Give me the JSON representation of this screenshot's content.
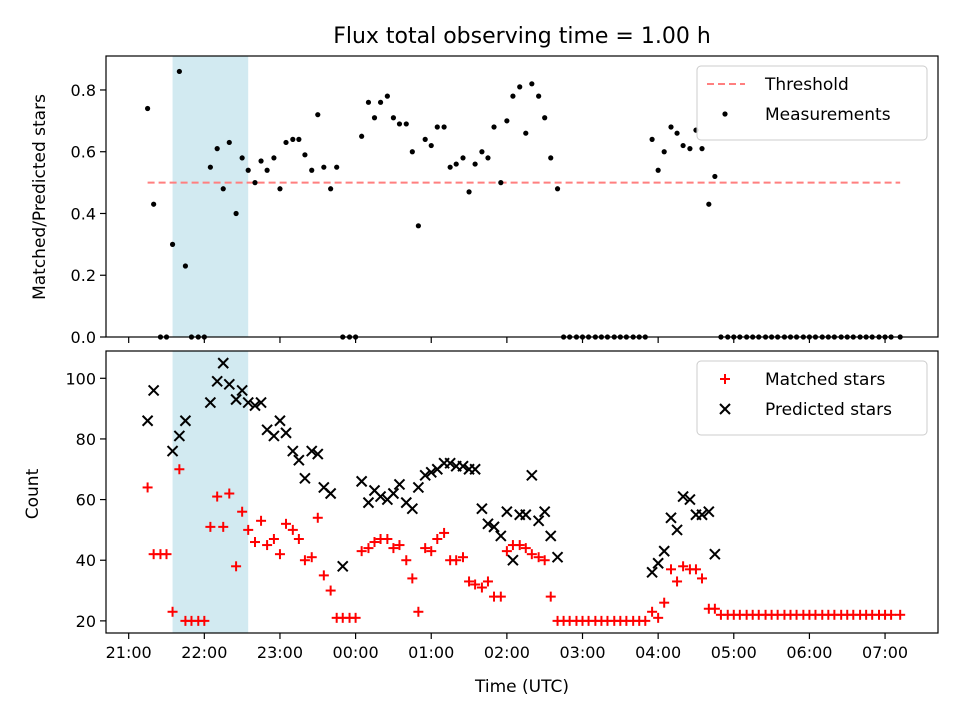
{
  "chart_data": [
    {
      "type": "scatter",
      "title": "Flux total observing time = 1.00 h",
      "xlabel": "",
      "ylabel": "Matched/Predicted stars",
      "ylim": [
        0,
        0.91
      ],
      "yticks": [
        "0.0",
        "0.2",
        "0.4",
        "0.6",
        "0.8"
      ],
      "grid": false,
      "legend_position": "top-right",
      "highlight_span": {
        "x_start": 4.58,
        "x_end": 5.58,
        "color": "#add8e6"
      },
      "threshold": {
        "name": "Threshold",
        "value": 0.5,
        "x_start": 4.25,
        "x_end": 14.2,
        "color": "#ff7f7f",
        "style": "dashed"
      },
      "series": [
        {
          "name": "Measurements",
          "color": "#000000",
          "x": [
            4.25,
            4.33,
            4.42,
            4.5,
            4.58,
            4.67,
            4.75,
            4.83,
            4.92,
            5.0,
            5.08,
            5.17,
            5.25,
            5.33,
            5.42,
            5.5,
            5.58,
            5.67,
            5.75,
            5.83,
            5.92,
            6.0,
            6.08,
            6.17,
            6.25,
            6.33,
            6.42,
            6.5,
            6.58,
            6.67,
            6.75,
            6.83,
            6.92,
            7.0,
            7.08,
            7.17,
            7.25,
            7.33,
            7.42,
            7.5,
            7.58,
            7.67,
            7.75,
            7.83,
            7.92,
            8.0,
            8.08,
            8.17,
            8.25,
            8.33,
            8.42,
            8.5,
            8.58,
            8.67,
            8.75,
            8.83,
            8.92,
            9.0,
            9.08,
            9.17,
            9.25,
            9.33,
            9.42,
            9.5,
            9.58,
            9.67,
            9.75,
            9.83,
            9.92,
            10.0,
            10.08,
            10.17,
            10.25,
            10.33,
            10.42,
            10.5,
            10.58,
            10.67,
            10.75,
            10.83,
            10.92,
            11.0,
            11.08,
            11.17,
            11.25,
            11.33,
            11.42,
            11.5,
            11.58,
            11.67,
            11.75,
            11.83,
            11.92,
            12.0,
            12.08,
            12.17,
            12.25,
            12.33,
            12.42,
            12.5,
            12.58,
            12.67,
            12.75,
            12.83,
            12.92,
            13.0,
            13.08,
            13.17,
            13.25,
            13.33,
            13.42,
            13.5,
            13.58,
            13.67,
            13.75,
            13.83,
            13.92,
            14.0,
            14.08,
            14.2
          ],
          "y": [
            0.74,
            0.43,
            0.0,
            0.0,
            0.3,
            0.86,
            0.23,
            0.0,
            0.0,
            0.0,
            0.55,
            0.61,
            0.48,
            0.63,
            0.4,
            0.58,
            0.54,
            0.5,
            0.57,
            0.54,
            0.58,
            0.48,
            0.63,
            0.64,
            0.64,
            0.59,
            0.54,
            0.72,
            0.55,
            0.48,
            0.55,
            0.0,
            0.0,
            0.0,
            0.65,
            0.76,
            0.71,
            0.76,
            0.78,
            0.71,
            0.69,
            0.69,
            0.6,
            0.36,
            0.64,
            0.62,
            0.68,
            0.68,
            0.55,
            0.56,
            0.58,
            0.47,
            0.56,
            0.6,
            0.58,
            0.68,
            0.5,
            0.7,
            0.78,
            0.81,
            0.66,
            0.82,
            0.78,
            0.71,
            0.58,
            0.48,
            0.0,
            0.0,
            0.0,
            0.0,
            0.0,
            0.0,
            0.0,
            0.0,
            0.0,
            0.0,
            0.0,
            0.0,
            0.0,
            0.0,
            0.64,
            0.54,
            0.6,
            0.68,
            0.66,
            0.62,
            0.61,
            0.67,
            0.61,
            0.43,
            0.52,
            0.0,
            0.0,
            0.0,
            0.0,
            0.0,
            0.0,
            0.0,
            0.0,
            0.0,
            0.0,
            0.0,
            0.0,
            0.0,
            0.0,
            0.0,
            0.0,
            0.0,
            0.0,
            0.0,
            0.0,
            0.0,
            0.0,
            0.0,
            0.0,
            0.0,
            0.0,
            0.0,
            0.0,
            0.0
          ]
        }
      ]
    },
    {
      "type": "scatter",
      "title": "",
      "xlabel": "Time (UTC)",
      "ylabel": "Count",
      "ylim": [
        16,
        109
      ],
      "yticks": [
        "20",
        "40",
        "60",
        "80",
        "100"
      ],
      "grid": false,
      "legend_position": "top-right",
      "highlight_span": {
        "x_start": 4.58,
        "x_end": 5.58,
        "color": "#add8e6"
      },
      "series": [
        {
          "name": "Matched stars",
          "marker": "+",
          "color": "#ff0000",
          "x": [
            4.25,
            4.33,
            4.42,
            4.5,
            4.58,
            4.67,
            4.75,
            4.83,
            4.92,
            5.0,
            5.08,
            5.17,
            5.25,
            5.33,
            5.42,
            5.5,
            5.58,
            5.67,
            5.75,
            5.83,
            5.92,
            6.0,
            6.08,
            6.17,
            6.25,
            6.33,
            6.42,
            6.5,
            6.58,
            6.67,
            6.75,
            6.83,
            6.92,
            7.0,
            7.08,
            7.17,
            7.25,
            7.33,
            7.42,
            7.5,
            7.58,
            7.67,
            7.75,
            7.83,
            7.92,
            8.0,
            8.08,
            8.17,
            8.25,
            8.33,
            8.42,
            8.5,
            8.58,
            8.67,
            8.75,
            8.83,
            8.92,
            9.0,
            9.08,
            9.17,
            9.25,
            9.33,
            9.42,
            9.5,
            9.58,
            9.67,
            9.75,
            9.83,
            9.92,
            10.0,
            10.08,
            10.17,
            10.25,
            10.33,
            10.42,
            10.5,
            10.58,
            10.67,
            10.75,
            10.83,
            10.92,
            11.0,
            11.08,
            11.17,
            11.25,
            11.33,
            11.42,
            11.5,
            11.58,
            11.67,
            11.75,
            11.83,
            11.92,
            12.0,
            12.08,
            12.17,
            12.25,
            12.33,
            12.42,
            12.5,
            12.58,
            12.67,
            12.75,
            12.83,
            12.92,
            13.0,
            13.08,
            13.17,
            13.25,
            13.33,
            13.42,
            13.5,
            13.58,
            13.67,
            13.75,
            13.83,
            13.92,
            14.0,
            14.08,
            14.2
          ],
          "y": [
            64,
            42,
            42,
            42,
            23,
            70,
            20,
            20,
            20,
            20,
            51,
            61,
            51,
            62,
            38,
            56,
            50,
            46,
            53,
            45,
            47,
            42,
            52,
            50,
            47,
            40,
            41,
            54,
            35,
            30,
            21,
            21,
            21,
            21,
            43,
            44,
            46,
            47,
            47,
            44,
            45,
            40,
            34,
            23,
            44,
            43,
            47,
            49,
            40,
            40,
            41,
            33,
            32,
            31,
            33,
            28,
            28,
            43,
            45,
            45,
            44,
            42,
            41,
            40,
            28,
            20,
            20,
            20,
            20,
            20,
            20,
            20,
            20,
            20,
            20,
            20,
            20,
            20,
            20,
            20,
            23,
            21,
            26,
            37,
            33,
            38,
            37,
            37,
            34,
            24,
            24,
            22,
            22,
            22,
            22,
            22,
            22,
            22,
            22,
            22,
            22,
            22,
            22,
            22,
            22,
            22,
            22,
            22,
            22,
            22,
            22,
            22,
            22,
            22,
            22,
            22,
            22,
            22,
            22,
            22
          ]
        },
        {
          "name": "Predicted stars",
          "marker": "x",
          "color": "#000000",
          "x": [
            4.25,
            4.33,
            4.58,
            4.67,
            4.75,
            5.08,
            5.17,
            5.25,
            5.33,
            5.42,
            5.5,
            5.58,
            5.67,
            5.75,
            5.83,
            5.92,
            6.0,
            6.08,
            6.17,
            6.25,
            6.33,
            6.42,
            6.5,
            6.58,
            6.67,
            6.83,
            7.08,
            7.17,
            7.25,
            7.33,
            7.42,
            7.5,
            7.58,
            7.67,
            7.75,
            7.83,
            7.92,
            8.0,
            8.08,
            8.17,
            8.25,
            8.33,
            8.42,
            8.5,
            8.58,
            8.67,
            8.75,
            8.83,
            8.92,
            9.0,
            9.08,
            9.17,
            9.25,
            9.33,
            9.42,
            9.5,
            9.58,
            9.67,
            10.92,
            11.0,
            11.08,
            11.17,
            11.25,
            11.33,
            11.42,
            11.5,
            11.58,
            11.67,
            11.75
          ],
          "y": [
            86,
            96,
            76,
            81,
            86,
            92,
            99,
            105,
            98,
            93,
            96,
            92,
            91,
            92,
            83,
            81,
            86,
            82,
            76,
            73,
            67,
            76,
            75,
            64,
            62,
            38,
            66,
            59,
            63,
            61,
            60,
            62,
            65,
            59,
            57,
            64,
            68,
            69,
            70,
            72,
            72,
            71,
            71,
            70,
            70,
            57,
            52,
            51,
            48,
            56,
            40,
            55,
            55,
            68,
            53,
            56,
            48,
            41,
            36,
            39,
            43,
            54,
            50,
            61,
            60,
            55,
            55,
            56,
            42
          ]
        }
      ]
    }
  ],
  "x_axis": {
    "ticks": [
      {
        "value": 4.0,
        "label": "21:00"
      },
      {
        "value": 5.0,
        "label": "22:00"
      },
      {
        "value": 6.0,
        "label": "23:00"
      },
      {
        "value": 7.0,
        "label": "00:00"
      },
      {
        "value": 8.0,
        "label": "01:00"
      },
      {
        "value": 9.0,
        "label": "02:00"
      },
      {
        "value": 10.0,
        "label": "03:00"
      },
      {
        "value": 11.0,
        "label": "04:00"
      },
      {
        "value": 12.0,
        "label": "05:00"
      },
      {
        "value": 13.0,
        "label": "06:00"
      },
      {
        "value": 14.0,
        "label": "07:00"
      }
    ],
    "xlim": [
      3.7,
      14.7
    ]
  }
}
